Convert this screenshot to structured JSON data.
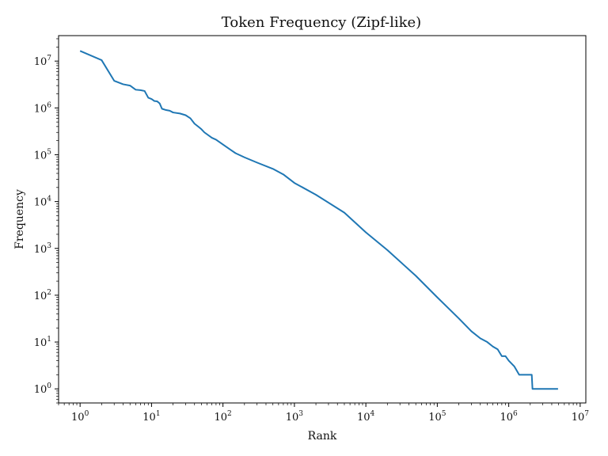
{
  "chart_data": {
    "type": "line",
    "title": "Token Frequency (Zipf-like)",
    "xlabel": "Rank",
    "ylabel": "Frequency",
    "xscale": "log",
    "yscale": "log",
    "xlim": [
      0.5,
      12000000
    ],
    "ylim": [
      0.5,
      35000000
    ],
    "grid": false,
    "colors": {
      "line": "#1f77b4",
      "axes": "#000000"
    },
    "xticks": [
      {
        "value": 1,
        "base": "10",
        "exp": "0"
      },
      {
        "value": 10,
        "base": "10",
        "exp": "1"
      },
      {
        "value": 100,
        "base": "10",
        "exp": "2"
      },
      {
        "value": 1000,
        "base": "10",
        "exp": "3"
      },
      {
        "value": 10000,
        "base": "10",
        "exp": "4"
      },
      {
        "value": 100000,
        "base": "10",
        "exp": "5"
      },
      {
        "value": 1000000,
        "base": "10",
        "exp": "6"
      },
      {
        "value": 10000000,
        "base": "10",
        "exp": "7"
      }
    ],
    "yticks": [
      {
        "value": 1,
        "base": "10",
        "exp": "0"
      },
      {
        "value": 10,
        "base": "10",
        "exp": "1"
      },
      {
        "value": 100,
        "base": "10",
        "exp": "2"
      },
      {
        "value": 1000,
        "base": "10",
        "exp": "3"
      },
      {
        "value": 10000,
        "base": "10",
        "exp": "4"
      },
      {
        "value": 100000,
        "base": "10",
        "exp": "5"
      },
      {
        "value": 1000000,
        "base": "10",
        "exp": "6"
      },
      {
        "value": 10000000,
        "base": "10",
        "exp": "7"
      }
    ],
    "series": [
      {
        "points": [
          [
            1,
            16500000
          ],
          [
            2,
            10500000
          ],
          [
            3,
            3800000
          ],
          [
            4,
            3200000
          ],
          [
            5,
            3000000
          ],
          [
            6,
            2450000
          ],
          [
            7,
            2400000
          ],
          [
            8,
            2300000
          ],
          [
            9,
            1650000
          ],
          [
            10,
            1550000
          ],
          [
            11,
            1400000
          ],
          [
            12,
            1380000
          ],
          [
            13,
            1250000
          ],
          [
            14,
            960000
          ],
          [
            16,
            900000
          ],
          [
            18,
            870000
          ],
          [
            20,
            800000
          ],
          [
            25,
            760000
          ],
          [
            30,
            700000
          ],
          [
            35,
            600000
          ],
          [
            40,
            460000
          ],
          [
            45,
            400000
          ],
          [
            50,
            350000
          ],
          [
            55,
            300000
          ],
          [
            70,
            230000
          ],
          [
            80,
            210000
          ],
          [
            100,
            165000
          ],
          [
            130,
            125000
          ],
          [
            150,
            108000
          ],
          [
            200,
            88000
          ],
          [
            300,
            68000
          ],
          [
            500,
            50000
          ],
          [
            700,
            38000
          ],
          [
            1000,
            25000
          ],
          [
            2000,
            14000
          ],
          [
            5000,
            5800
          ],
          [
            10000,
            2200
          ],
          [
            20000,
            920
          ],
          [
            50000,
            260
          ],
          [
            100000,
            90
          ],
          [
            200000,
            32
          ],
          [
            300000,
            17
          ],
          [
            400000,
            12
          ],
          [
            500000,
            10
          ],
          [
            600000,
            8
          ],
          [
            700000,
            7
          ],
          [
            800000,
            5
          ],
          [
            900000,
            5
          ],
          [
            1000000,
            4
          ],
          [
            1200000,
            3
          ],
          [
            1400000,
            2
          ],
          [
            2100000,
            2
          ],
          [
            2150000,
            1
          ],
          [
            4900000,
            1
          ]
        ]
      }
    ]
  }
}
